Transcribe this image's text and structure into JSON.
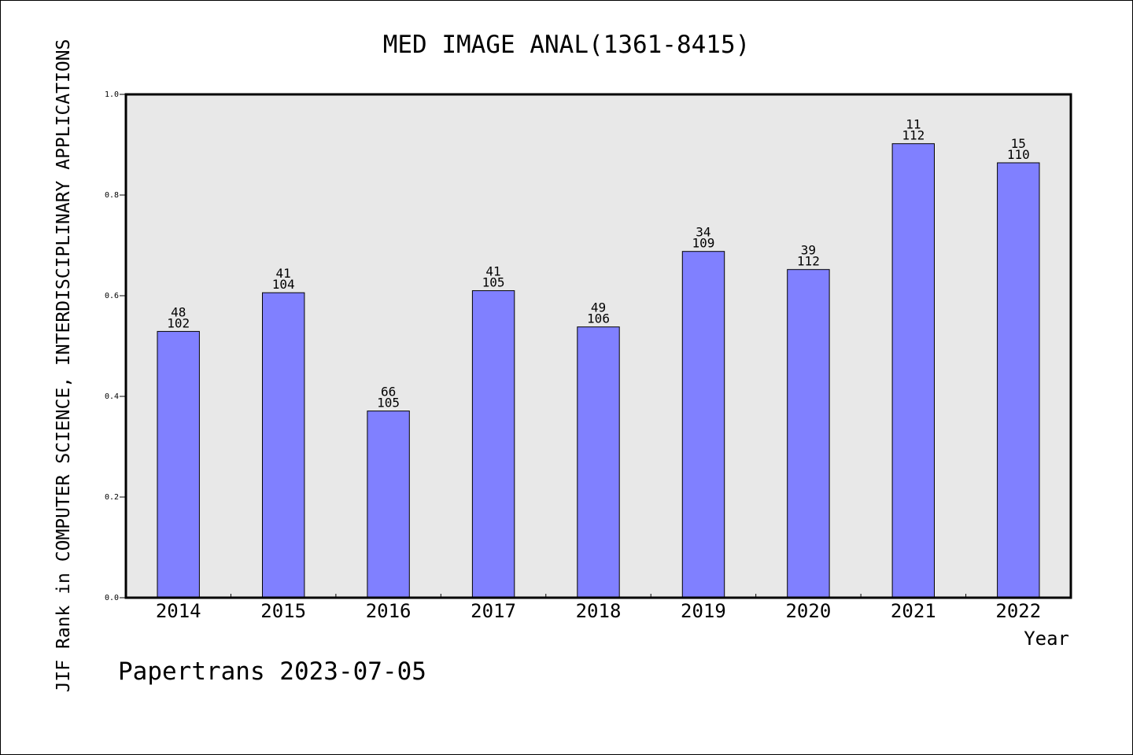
{
  "chart_data": {
    "type": "bar",
    "title": "MED IMAGE ANAL(1361-8415)",
    "ylabel": "JIF Rank in COMPUTER SCIENCE, INTERDISCIPLINARY APPLICATIONS",
    "xlabel": "Year",
    "footer": "Papertrans 2023-07-05",
    "ylim": [
      0,
      1
    ],
    "yticks": [
      "0.0",
      "0.2",
      "0.4",
      "0.6",
      "0.8",
      "1.0"
    ],
    "grid": false,
    "categories": [
      "2014",
      "2015",
      "2016",
      "2017",
      "2018",
      "2019",
      "2020",
      "2021",
      "2022"
    ],
    "values": [
      0.529,
      0.606,
      0.371,
      0.61,
      0.538,
      0.688,
      0.652,
      0.902,
      0.864
    ],
    "rank_labels": [
      "48",
      "41",
      "66",
      "41",
      "49",
      "34",
      "39",
      "11",
      "15"
    ],
    "total_labels": [
      "102",
      "104",
      "105",
      "105",
      "106",
      "109",
      "112",
      "112",
      "110"
    ],
    "colors": {
      "bar": "#8080ff",
      "plot_background": "#e8e8e8",
      "axes": "#000000",
      "page_background": "#ffffff"
    }
  }
}
